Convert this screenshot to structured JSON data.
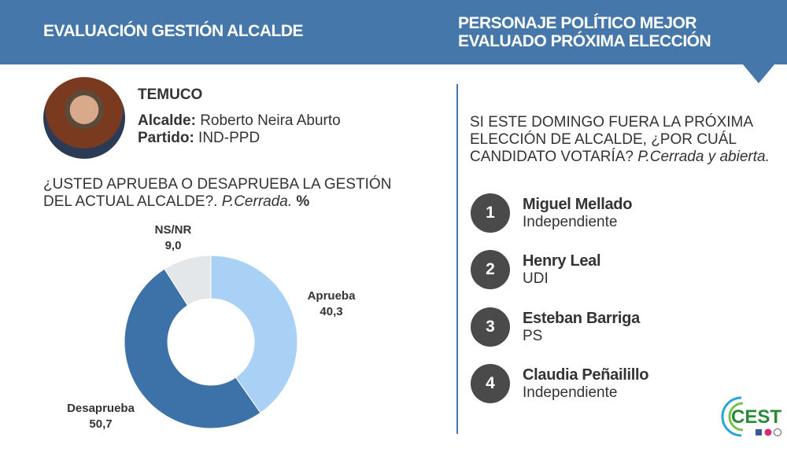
{
  "header": {
    "left_title": "EVALUACIÓN GESTIÓN ALCALDE",
    "right_title_line1": "PERSONAJE POLÍTICO MEJOR",
    "right_title_line2": "EVALUADO PRÓXIMA ELECCIÓN"
  },
  "mayor": {
    "city": "TEMUCO",
    "alcalde_label": "Alcalde:",
    "alcalde": " Roberto Neira Aburto",
    "partido_label": "Partido:",
    "partido": " IND-PPD"
  },
  "question1": {
    "text": "¿USTED APRUEBA O DESAPRUEBA LA GESTIÓN DEL ACTUAL ALCALDE?. ",
    "note": "P.Cerrada.",
    "unit": " %"
  },
  "chart_data": {
    "type": "pie",
    "donut": true,
    "categories": [
      "Aprueba",
      "Desaprueba",
      "NS/NR"
    ],
    "values": [
      40.3,
      50.7,
      9.0
    ],
    "labels": [
      "40,3",
      "50,7",
      "9,0"
    ],
    "colors": [
      "#a9d0f5",
      "#3d72a8",
      "#e3e7ea"
    ]
  },
  "question2": {
    "text": "SI ESTE DOMINGO FUERA LA PRÓXIMA ELECCIÓN DE ALCALDE, ¿POR CUÁL CANDIDATO VOTARÍA?  ",
    "note": "P.Cerrada y abierta."
  },
  "candidates": [
    {
      "rank": "1",
      "name": "Miguel Mellado",
      "party": "Independiente"
    },
    {
      "rank": "2",
      "name": "Henry Leal",
      "party": "UDI"
    },
    {
      "rank": "3",
      "name": "Esteban Barriga",
      "party": "PS"
    },
    {
      "rank": "4",
      "name": "Claudia Peñailillo",
      "party": "Independiente"
    }
  ],
  "logo": {
    "text": "CEST"
  },
  "colors": {
    "header": "#4677aa"
  }
}
